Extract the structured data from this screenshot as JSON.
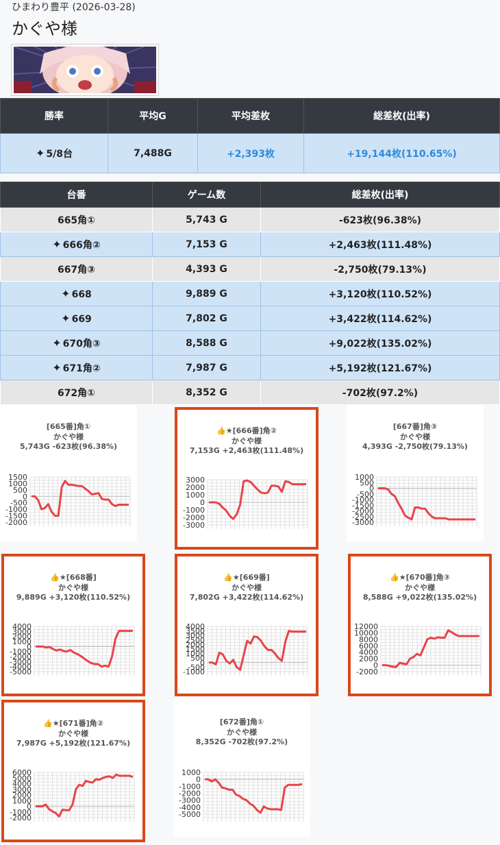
{
  "header": {
    "store": "ひまわり豊平 (2026-03-28)",
    "title": "かぐや様"
  },
  "summary": {
    "headers": [
      "勝率",
      "平均G",
      "平均差枚",
      "総差枚(出率)"
    ],
    "win_rate": "5/8台",
    "avg_games": "7,488G",
    "avg_diff": "+2,393枚",
    "total_diff": "+19,144枚(110.65%)"
  },
  "machines": {
    "headers": [
      "台番",
      "ゲーム数",
      "総差枚(出率)"
    ],
    "rows": [
      {
        "name": "665角①",
        "games": "5,743 G",
        "diff": "-623枚(96.38%)",
        "win": false
      },
      {
        "name": "666角②",
        "games": "7,153 G",
        "diff": "+2,463枚(111.48%)",
        "win": true
      },
      {
        "name": "667角③",
        "games": "4,393 G",
        "diff": "-2,750枚(79.13%)",
        "win": false
      },
      {
        "name": "668",
        "games": "9,889 G",
        "diff": "+3,120枚(110.52%)",
        "win": true
      },
      {
        "name": "669",
        "games": "7,802 G",
        "diff": "+3,422枚(114.62%)",
        "win": true
      },
      {
        "name": "670角③",
        "games": "8,588 G",
        "diff": "+9,022枚(135.02%)",
        "win": true
      },
      {
        "name": "671角②",
        "games": "7,987 G",
        "diff": "+5,192枚(121.67%)",
        "win": true
      },
      {
        "name": "672角①",
        "games": "8,352 G",
        "diff": "-702枚(97.2%)",
        "win": false
      }
    ]
  },
  "colors": {
    "line": "#e8434a",
    "highlight": "#d9481a",
    "header_bg": "#343a40",
    "win_bg": "#cfe3f7",
    "lose_bg": "#e6e6e6",
    "accent": "#2f8ad8"
  },
  "chart_data": [
    {
      "type": "line",
      "highlight": false,
      "title": [
        "[665番]角①",
        "かぐや様",
        "5,743G -623枚(96.38%)"
      ],
      "yticks": [
        1500,
        1000,
        500,
        0,
        -500,
        -1000,
        -1500,
        -2000
      ],
      "ylim": [
        -2000,
        1500
      ],
      "values": [
        0,
        0,
        -300,
        -1000,
        -900,
        -600,
        -1200,
        -1500,
        -1500,
        700,
        1200,
        900,
        900,
        850,
        800,
        800,
        600,
        400,
        150,
        200,
        250,
        -200,
        -250,
        -250,
        -600,
        -750,
        -650,
        -650,
        -650,
        -650
      ]
    },
    {
      "type": "line",
      "highlight": true,
      "title": [
        "👍★[666番]角②",
        "かぐや様",
        "7,153G +2,463枚(111.48%)"
      ],
      "yticks": [
        3000,
        2000,
        1000,
        0,
        -1000,
        -2000,
        -3000
      ],
      "ylim": [
        -3000,
        3000
      ],
      "values": [
        0,
        0,
        0,
        -200,
        -700,
        -1100,
        -1800,
        -2200,
        -1600,
        -300,
        2800,
        2900,
        2700,
        2200,
        1700,
        1300,
        1200,
        1300,
        2200,
        2200,
        2100,
        1400,
        2800,
        2700,
        2400,
        2400,
        2400,
        2400,
        2400
      ]
    },
    {
      "type": "line",
      "highlight": false,
      "title": [
        "[667番]角③",
        "かぐや様",
        "4,393G -2,750枚(79.13%)"
      ],
      "yticks": [
        1000,
        500,
        0,
        -500,
        -1000,
        -1500,
        -2000,
        -2500,
        -3000
      ],
      "ylim": [
        -3000,
        1000
      ],
      "values": [
        0,
        0,
        0,
        -100,
        -500,
        -700,
        -1300,
        -1800,
        -2400,
        -2600,
        -2750,
        -1700,
        -1700,
        -1800,
        -1800,
        -2200,
        -2500,
        -2650,
        -2650,
        -2650,
        -2650,
        -2750,
        -2750,
        -2750,
        -2750,
        -2750,
        -2750,
        -2750,
        -2750,
        -2750
      ]
    },
    {
      "type": "line",
      "highlight": true,
      "title": [
        "👍★[668番]",
        "かぐや様",
        "9,889G +3,120枚(110.52%)"
      ],
      "yticks": [
        4000,
        3000,
        2000,
        1000,
        0,
        -1000,
        -2000,
        -3000,
        -4000,
        -5000
      ],
      "ylim": [
        -5000,
        4000
      ],
      "values": [
        0,
        0,
        0,
        -200,
        -100,
        -500,
        -800,
        -600,
        -900,
        -1000,
        -700,
        -1200,
        -1500,
        -1900,
        -2400,
        -2900,
        -3300,
        -3500,
        -3500,
        -4000,
        -3800,
        -4000,
        -2000,
        1600,
        3100,
        3100,
        3100,
        3100,
        3120
      ]
    },
    {
      "type": "line",
      "highlight": true,
      "title": [
        "👍★[669番]",
        "かぐや様",
        "7,802G +3,422枚(114.62%)"
      ],
      "yticks": [
        4000,
        3500,
        3000,
        2500,
        2000,
        1500,
        1000,
        500,
        0,
        -500,
        -1000
      ],
      "ylim": [
        -1000,
        4000
      ],
      "values": [
        0,
        0,
        -200,
        1100,
        900,
        200,
        -100,
        300,
        -500,
        -800,
        800,
        2400,
        2100,
        2900,
        2800,
        2400,
        1800,
        1400,
        1400,
        1000,
        500,
        200,
        2300,
        3500,
        3422,
        3422,
        3422,
        3422,
        3422
      ]
    },
    {
      "type": "line",
      "highlight": true,
      "title": [
        "👍★[670番]角③",
        "かぐや様",
        "8,588G +9,022枚(135.02%)"
      ],
      "yticks": [
        12000,
        10000,
        8000,
        6000,
        4000,
        2000,
        0,
        -2000
      ],
      "ylim": [
        -2000,
        12000
      ],
      "values": [
        0,
        0,
        -200,
        -500,
        -600,
        700,
        500,
        300,
        2000,
        2500,
        3500,
        3000,
        5500,
        8000,
        8500,
        8200,
        8600,
        8500,
        8500,
        10800,
        10200,
        9500,
        9000,
        9000,
        9000,
        9000,
        9000,
        9000,
        9022
      ]
    },
    {
      "type": "line",
      "highlight": true,
      "title": [
        "👍★[671番]角②",
        "かぐや様",
        "7,987G +5,192枚(121.67%)"
      ],
      "yticks": [
        6000,
        5000,
        4000,
        3000,
        2000,
        1000,
        0,
        -1000,
        -2000
      ],
      "ylim": [
        -2000,
        6000
      ],
      "values": [
        0,
        0,
        0,
        300,
        -500,
        -900,
        -1200,
        -1800,
        -600,
        -700,
        -700,
        300,
        3000,
        3800,
        3600,
        4500,
        4300,
        4200,
        4800,
        4700,
        5000,
        5200,
        5300,
        5000,
        5600,
        5400,
        5400,
        5400,
        5400,
        5192
      ]
    },
    {
      "type": "line",
      "highlight": false,
      "title": [
        "[672番]角①",
        "かぐや様",
        "8,352G -702枚(97.2%)"
      ],
      "yticks": [
        1000,
        0,
        -1000,
        -2000,
        -3000,
        -4000,
        -5000
      ],
      "ylim": [
        -5500,
        1000
      ],
      "values": [
        0,
        0,
        -300,
        0,
        -500,
        -1200,
        -1300,
        -1500,
        -1500,
        -2200,
        -2400,
        -2800,
        -3000,
        -3500,
        -3800,
        -4400,
        -4800,
        -3900,
        -4200,
        -4300,
        -4300,
        -4300,
        -4400,
        -1200,
        -800,
        -800,
        -800,
        -800,
        -702
      ]
    }
  ]
}
